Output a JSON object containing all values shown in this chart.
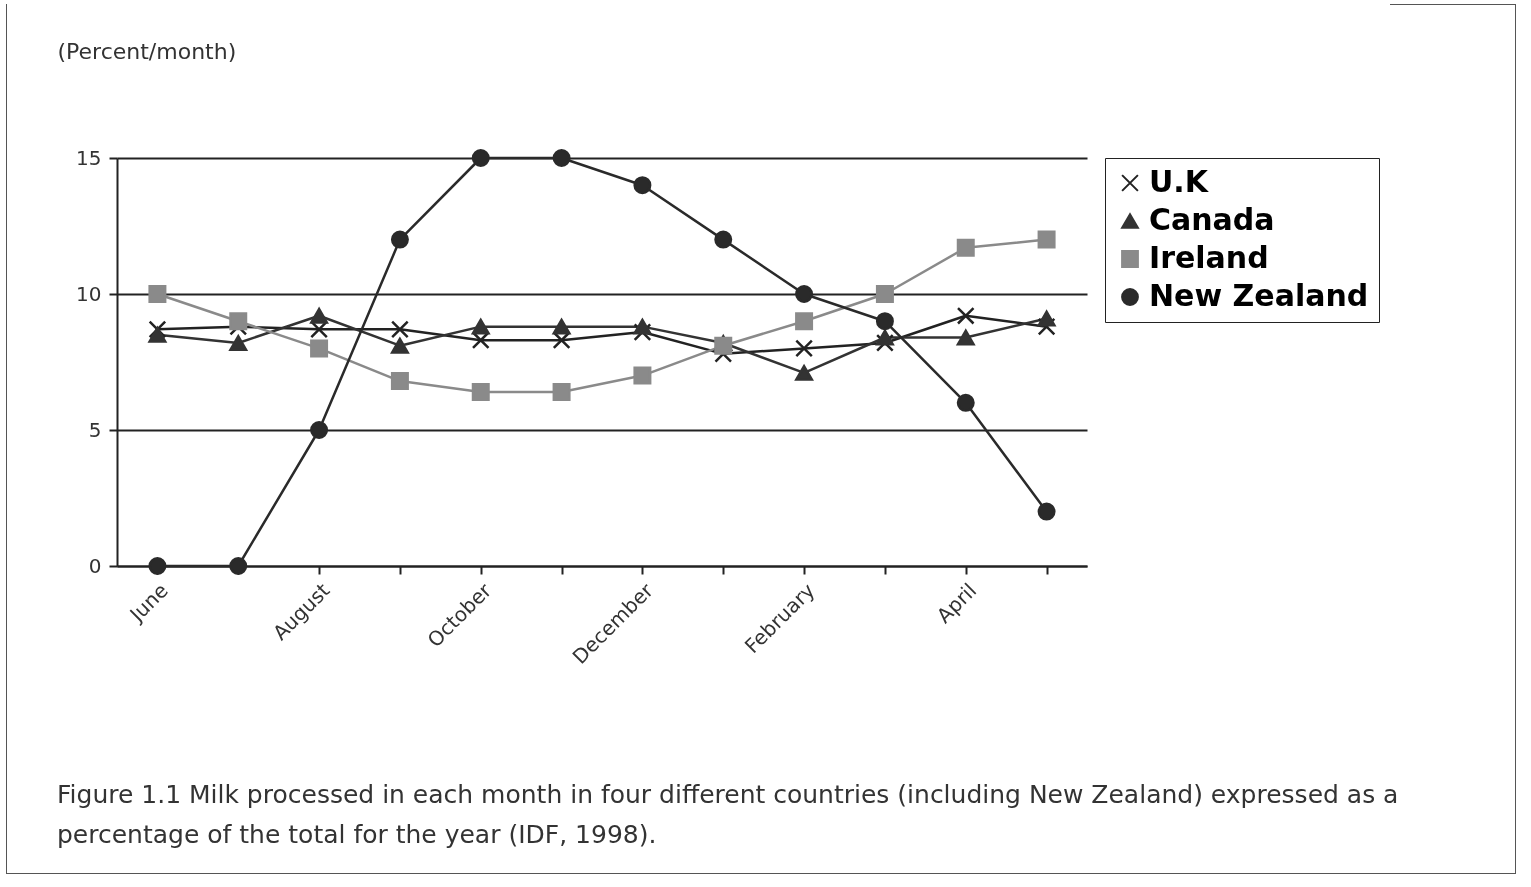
{
  "chart_data": {
    "type": "line",
    "ylabel": "(Percent/month)",
    "categories": [
      "June",
      null,
      "August",
      null,
      "October",
      null,
      "December",
      null,
      "February",
      null,
      "April",
      null
    ],
    "series": [
      {
        "name": "U.K",
        "color": "#222222",
        "marker": "cross",
        "values": [
          8.7,
          8.8,
          8.7,
          8.7,
          8.3,
          8.3,
          8.6,
          7.8,
          8.0,
          8.2,
          9.2,
          8.8
        ]
      },
      {
        "name": "Canada",
        "color": "#333333",
        "marker": "triangle",
        "values": [
          8.5,
          8.2,
          9.2,
          8.1,
          8.8,
          8.8,
          8.8,
          8.2,
          7.1,
          8.4,
          8.4,
          9.1
        ]
      },
      {
        "name": "Ireland",
        "color": "#8a8a8a",
        "marker": "square",
        "values": [
          10,
          9.0,
          8.0,
          6.8,
          6.4,
          6.4,
          7.0,
          8.1,
          9.0,
          10,
          11.7,
          12
        ]
      },
      {
        "name": "New Zealand",
        "color": "#2a2a2a",
        "marker": "circle",
        "values": [
          0,
          0,
          5,
          12,
          15,
          15,
          14,
          12,
          10,
          9,
          6,
          2
        ]
      }
    ],
    "ylim": [
      0,
      15
    ],
    "yticks": [
      0,
      5,
      10,
      15
    ],
    "grid": "y",
    "legend": "right",
    "annotations": [
      "Figure 1.1    Milk processed in each month in four different countries (including New Zealand) expressed as a percentage of the total for the year (IDF, 1998)."
    ]
  }
}
